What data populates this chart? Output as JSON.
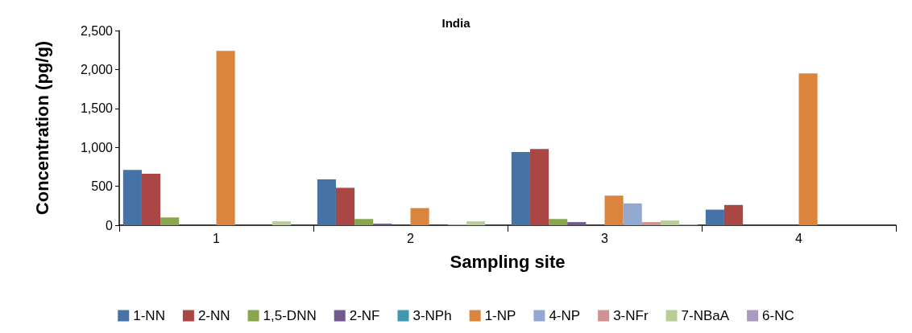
{
  "chart_data": {
    "type": "bar",
    "title": "India",
    "xlabel": "Sampling site",
    "ylabel": "Concentration (pg/g)",
    "categories": [
      "1",
      "2",
      "3",
      "4"
    ],
    "series": [
      {
        "name": "1-NN",
        "color": "#4572a7",
        "values": [
          710,
          590,
          940,
          200
        ]
      },
      {
        "name": "2-NN",
        "color": "#aa4643",
        "values": [
          660,
          480,
          980,
          260
        ]
      },
      {
        "name": "1,5-DNN",
        "color": "#89a54e",
        "values": [
          100,
          80,
          80,
          0
        ]
      },
      {
        "name": "2-NF",
        "color": "#71588f",
        "values": [
          null,
          20,
          40,
          0
        ]
      },
      {
        "name": "3-NPh",
        "color": "#4198af",
        "values": [
          0,
          0,
          0,
          0
        ]
      },
      {
        "name": "1-NP",
        "color": "#db843d",
        "values": [
          2240,
          220,
          380,
          1950
        ]
      },
      {
        "name": "4-NP",
        "color": "#93a9cf",
        "values": [
          0,
          0,
          280,
          0
        ]
      },
      {
        "name": "3-NFr",
        "color": "#d19392",
        "values": [
          0,
          10,
          40,
          0
        ]
      },
      {
        "name": "7-NBaA",
        "color": "#b9cd96",
        "values": [
          50,
          50,
          60,
          0
        ]
      },
      {
        "name": "6-NC",
        "color": "#a99bbd",
        "values": [
          0,
          0,
          10,
          0
        ]
      }
    ],
    "ylim": [
      0,
      2500
    ],
    "yticks": [
      0,
      {
        "value": 500,
        "label": "500"
      },
      {
        "value": 1000,
        "label": "1,000"
      },
      {
        "value": 1500,
        "label": "1,500"
      },
      {
        "value": 2000,
        "label": "2,000"
      },
      {
        "value": 2500,
        "label": "2,500"
      }
    ],
    "grid": false,
    "legend": "bottom"
  }
}
